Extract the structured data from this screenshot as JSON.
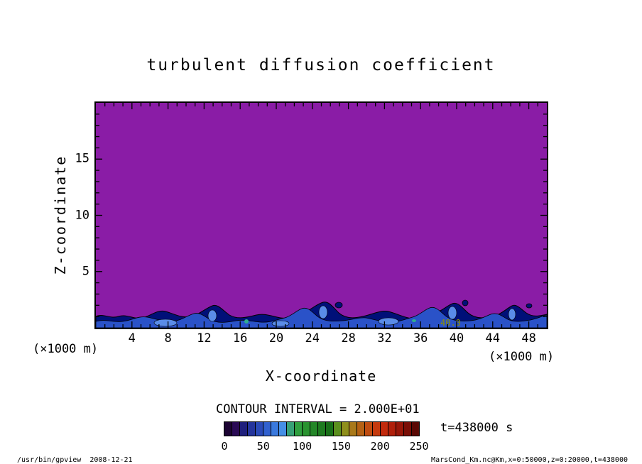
{
  "title": "turbulent diffusion coefficient",
  "axes": {
    "y_label": "Z-coordinate",
    "x_label": "X-coordinate",
    "y_ticks": [
      "15",
      "10",
      "5"
    ],
    "x_ticks": [
      "4",
      "8",
      "12",
      "16",
      "20",
      "24",
      "28",
      "32",
      "36",
      "40",
      "44",
      "48"
    ],
    "y_unit": "(×1000 m)",
    "x_unit": "(×1000 m)"
  },
  "plot": {
    "contour_label": "40.0",
    "field_color": "#8a1ca6",
    "band_colors": [
      "#001078",
      "#2a52c8",
      "#5a8ce8"
    ],
    "speck_color": "#2fae8f",
    "contour_line_color": "#000000",
    "contour_label_color": "#8f8f00"
  },
  "contour_info": "CONTOUR INTERVAL = 2.000E+01",
  "time_label": "t=438000 s",
  "colorbar": {
    "tick_labels": [
      "0",
      "50",
      "100",
      "150",
      "200",
      "250"
    ],
    "colors": [
      "#1c0433",
      "#2a0a55",
      "#1f1f7c",
      "#24349c",
      "#2a4ab8",
      "#3161cf",
      "#3a79dd",
      "#458fe6",
      "#37a076",
      "#2f9f3f",
      "#2a9330",
      "#248728",
      "#1e7b20",
      "#186f18",
      "#5b8f1e",
      "#8f8f1c",
      "#a9791a",
      "#b56114",
      "#bf4c10",
      "#c53a0e",
      "#c22a0c",
      "#b01f0a",
      "#971608",
      "#7a0e06",
      "#5a0804"
    ]
  },
  "footer": {
    "left": "/usr/bin/gpview  2008-12-21",
    "right": "MarsCond_Km.nc@Km,x=0:50000,z=0:20000,t=438000"
  },
  "chart_data": {
    "type": "heatmap",
    "title": "turbulent diffusion coefficient",
    "xlabel": "X-coordinate",
    "ylabel": "Z-coordinate",
    "x_unit": "×1000 m",
    "y_unit": "×1000 m",
    "xlim": [
      0,
      50
    ],
    "ylim": [
      0,
      20
    ],
    "x_ticks": [
      4,
      8,
      12,
      16,
      20,
      24,
      28,
      32,
      36,
      40,
      44,
      48
    ],
    "y_ticks": [
      5,
      10,
      15
    ],
    "contour_interval": 20.0,
    "contour_interval_label": "CONTOUR INTERVAL = 2.000E+01",
    "colorbar_ticks": [
      0,
      50,
      100,
      150,
      200,
      250
    ],
    "colorbar_range": [
      0,
      250
    ],
    "time": "t=438000 s",
    "labeled_contour": {
      "value": 40.0,
      "approx_x": 38,
      "approx_z": 0.3
    },
    "field_description": "2D filled-contour field of turbulent diffusion coefficient Km: nearly uniform low values (< 20, purple) over almost the whole x-z domain; a thin turbulent boundary layer along the bottom surface (z below about 1.5 ×1000 m) with irregular wavy plumes where values rise through ~20-100 (blues, black contour lines), including a contour labeled 40.0 near x=38"
  }
}
